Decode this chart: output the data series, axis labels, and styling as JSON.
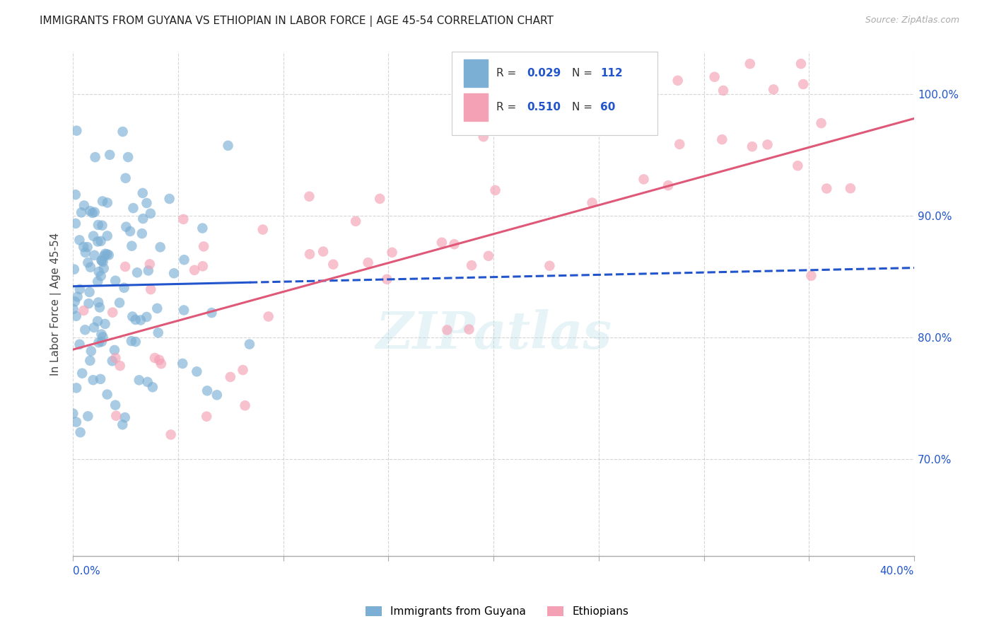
{
  "title": "IMMIGRANTS FROM GUYANA VS ETHIOPIAN IN LABOR FORCE | AGE 45-54 CORRELATION CHART",
  "source": "Source: ZipAtlas.com",
  "ylabel": "In Labor Force | Age 45-54",
  "right_yticks": [
    70.0,
    80.0,
    90.0,
    100.0
  ],
  "right_ytick_labels": [
    "70.0%",
    "80.0%",
    "90.0%",
    "100.0%"
  ],
  "xmin": 0.0,
  "xmax": 40.0,
  "ymin": 62.0,
  "ymax": 103.5,
  "guyana_R": 0.029,
  "guyana_N": 112,
  "ethiopian_R": 0.51,
  "ethiopian_N": 60,
  "guyana_color": "#7bafd4",
  "ethiopian_color": "#f4a0b5",
  "guyana_line_color": "#2255cc",
  "ethiopian_line_color": "#e05878",
  "watermark": "ZIPatlas",
  "background_color": "#ffffff",
  "title_fontsize": 11,
  "source_fontsize": 9,
  "legend_color": "#2255cc",
  "axis_label_color": "#2255cc",
  "grid_color": "#cccccc",
  "bottom_legend_labels": [
    "Immigrants from Guyana",
    "Ethiopians"
  ]
}
